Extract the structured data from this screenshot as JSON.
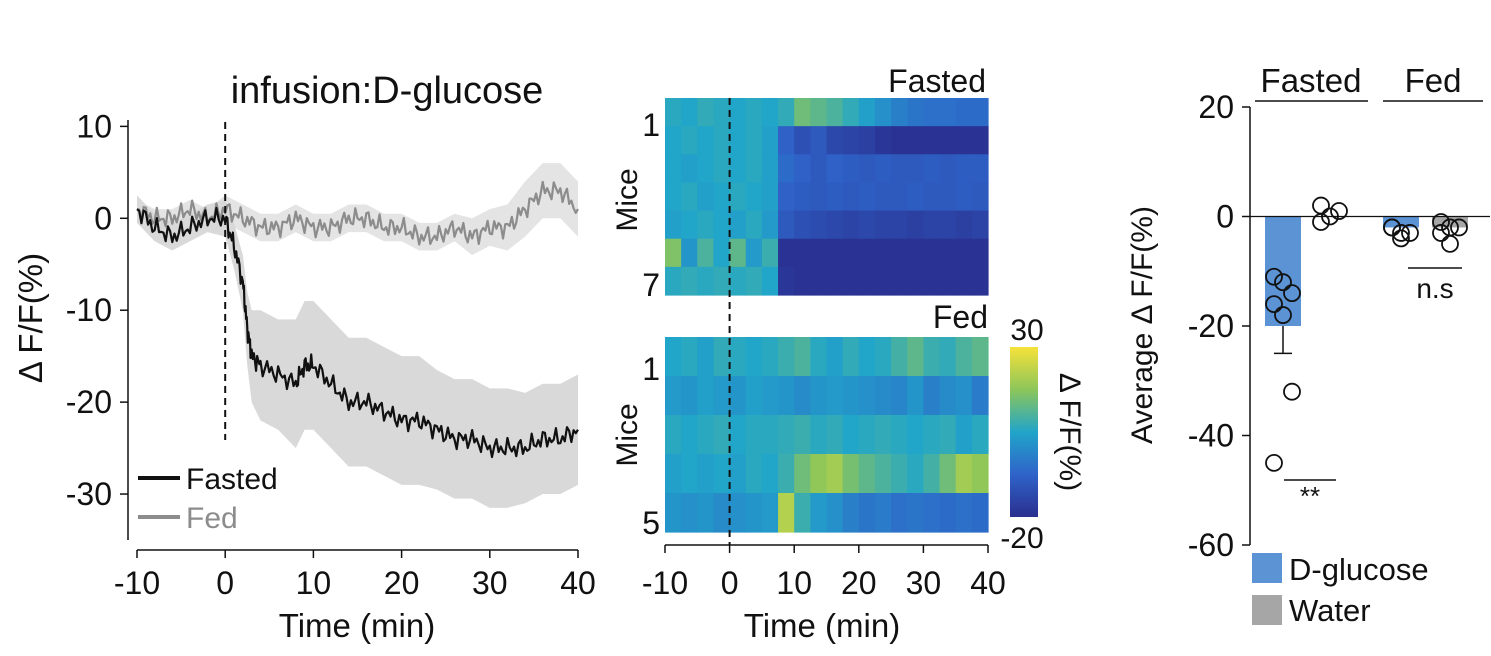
{
  "chart_data": [
    {
      "type": "line",
      "annotation": "infusion:D-glucose",
      "xlabel": "Time (min)",
      "ylabel": "Δ F/F(%)",
      "xlim": [
        -10,
        40
      ],
      "ylim": [
        -35,
        12
      ],
      "xticks": [
        -10,
        0,
        10,
        20,
        30,
        40
      ],
      "yticks": [
        10,
        0,
        -10,
        -20,
        -30
      ],
      "infusion_time": 0,
      "series": [
        {
          "name": "Fasted",
          "color": "#111111",
          "band_color": "#d9d9d9",
          "x": [
            -10,
            -8,
            -6,
            -4,
            -2,
            0,
            1,
            2,
            2.5,
            3,
            4,
            6,
            8,
            9,
            10,
            12,
            14,
            16,
            18,
            20,
            22,
            24,
            26,
            28,
            30,
            32,
            34,
            36,
            38,
            40
          ],
          "y": [
            1,
            -1,
            -2,
            -1,
            0,
            0,
            -3,
            -7,
            -12,
            -15,
            -16,
            -17,
            -18,
            -16,
            -16,
            -18,
            -20,
            -20,
            -21,
            -22,
            -22,
            -23,
            -24,
            -24,
            -25,
            -25,
            -25,
            -24,
            -24,
            -23
          ],
          "sem": [
            1.5,
            1.5,
            1.5,
            1.5,
            1.5,
            2,
            2.5,
            3,
            4,
            5,
            6,
            6,
            7,
            7,
            7,
            7,
            7,
            7,
            7,
            7,
            7,
            6.5,
            6.5,
            6.5,
            6.5,
            6.5,
            6,
            6,
            6,
            6
          ]
        },
        {
          "name": "Fed",
          "color": "#8c8c8c",
          "band_color": "#e4e4e4",
          "x": [
            -10,
            -8,
            -6,
            -4,
            -2,
            0,
            2,
            4,
            6,
            8,
            10,
            12,
            14,
            16,
            18,
            20,
            22,
            24,
            26,
            28,
            30,
            32,
            34,
            36,
            38,
            40
          ],
          "y": [
            1,
            0,
            0,
            1,
            0,
            1,
            0,
            -1,
            -1,
            0,
            -1,
            -1,
            0,
            0,
            -1,
            -1,
            -2,
            -2,
            -1,
            -2,
            -1,
            -1,
            1,
            3,
            3,
            1
          ],
          "sem": [
            1,
            1,
            1,
            1,
            1,
            1.5,
            1.5,
            1.5,
            1.5,
            1.5,
            1.5,
            1.5,
            1.5,
            1.5,
            1.5,
            1.5,
            1.5,
            1.5,
            1.5,
            2,
            2,
            2.5,
            3,
            3,
            3,
            3
          ]
        }
      ],
      "legend": [
        "Fasted",
        "Fed"
      ]
    },
    {
      "type": "heatmap",
      "panels": [
        {
          "title": "Fasted",
          "ylabel": "Mice",
          "row_labels": [
            "1",
            "7"
          ],
          "rows": [
            [
              6,
              5,
              7,
              6,
              5,
              6,
              5,
              7,
              14,
              12,
              10,
              7,
              4,
              1,
              -2,
              -4,
              -5,
              -5,
              -6,
              -6
            ],
            [
              5,
              6,
              5,
              6,
              5,
              6,
              4,
              -8,
              -12,
              -10,
              -14,
              -15,
              -16,
              -18,
              -19,
              -19,
              -19,
              -19,
              -19,
              -19
            ],
            [
              5,
              4,
              5,
              6,
              5,
              6,
              4,
              -6,
              -8,
              -10,
              -8,
              -9,
              -10,
              -9,
              -10,
              -10,
              -9,
              -10,
              -9,
              -9
            ],
            [
              5,
              6,
              4,
              5,
              6,
              5,
              4,
              -8,
              -9,
              -10,
              -9,
              -10,
              -9,
              -10,
              -10,
              -9,
              -10,
              -10,
              -9,
              -10
            ],
            [
              4,
              5,
              6,
              5,
              4,
              6,
              3,
              -10,
              -12,
              -13,
              -14,
              -15,
              -14,
              -15,
              -15,
              -16,
              -15,
              -15,
              -16,
              -15
            ],
            [
              16,
              2,
              10,
              5,
              12,
              3,
              8,
              -19,
              -19,
              -19,
              -19,
              -19,
              -19,
              -19,
              -19,
              -19,
              -19,
              -19,
              -19,
              -19
            ],
            [
              6,
              7,
              6,
              7,
              6,
              7,
              5,
              -18,
              -19,
              -19,
              -19,
              -19,
              -19,
              -19,
              -19,
              -19,
              -19,
              -19,
              -19,
              -19
            ]
          ]
        },
        {
          "title": "Fed",
          "ylabel": "Mice",
          "row_labels": [
            "1",
            "5"
          ],
          "rows": [
            [
              5,
              6,
              4,
              7,
              6,
              5,
              6,
              8,
              10,
              6,
              4,
              7,
              5,
              6,
              9,
              12,
              8,
              7,
              10,
              12
            ],
            [
              3,
              2,
              4,
              3,
              2,
              4,
              3,
              2,
              0,
              2,
              3,
              2,
              1,
              0,
              -1,
              2,
              -2,
              0,
              1,
              -3
            ],
            [
              6,
              5,
              6,
              7,
              5,
              6,
              6,
              7,
              8,
              6,
              7,
              5,
              6,
              7,
              6,
              5,
              6,
              7,
              4,
              6
            ],
            [
              4,
              5,
              4,
              5,
              4,
              6,
              5,
              8,
              14,
              18,
              20,
              15,
              12,
              10,
              8,
              6,
              9,
              14,
              20,
              18
            ],
            [
              2,
              1,
              2,
              0,
              1,
              2,
              3,
              22,
              8,
              3,
              1,
              -2,
              -4,
              -3,
              -5,
              -4,
              -5,
              -6,
              -5,
              -6
            ]
          ]
        }
      ],
      "xlabel": "Time (min)",
      "xlim": [
        -10,
        40
      ],
      "xticks": [
        -10,
        0,
        10,
        20,
        30,
        40
      ],
      "colorbar": {
        "label": "Δ F/F(%)",
        "min": -20,
        "max": 30,
        "min_label": "-20",
        "max_label": "30"
      }
    },
    {
      "type": "bar",
      "ylabel": "Average Δ F/F(%)",
      "ylim": [
        -60,
        20
      ],
      "yticks": [
        20,
        0,
        -20,
        -40,
        -60
      ],
      "groups": [
        "Fasted",
        "Fed"
      ],
      "series": [
        {
          "name": "D-glucose",
          "color": "#5b93d4",
          "values": [
            -20,
            -2
          ],
          "error": [
            5,
            0
          ]
        },
        {
          "name": "Water",
          "color": "#a6a6a6",
          "values": [
            0,
            -2
          ],
          "error": [
            0,
            0
          ]
        }
      ],
      "points": {
        "Fasted_D-glucose": [
          -11,
          -12,
          -14,
          -16,
          -18,
          -32,
          -45
        ],
        "Fasted_Water": [
          2,
          0,
          1,
          -1
        ],
        "Fed_D-glucose": [
          -2,
          -3,
          -3,
          -2,
          -4
        ],
        "Fed_Water": [
          -1,
          -2,
          -2,
          -3,
          -5
        ]
      },
      "significance": {
        "Fasted": "**",
        "Fed": "n.s"
      }
    }
  ]
}
